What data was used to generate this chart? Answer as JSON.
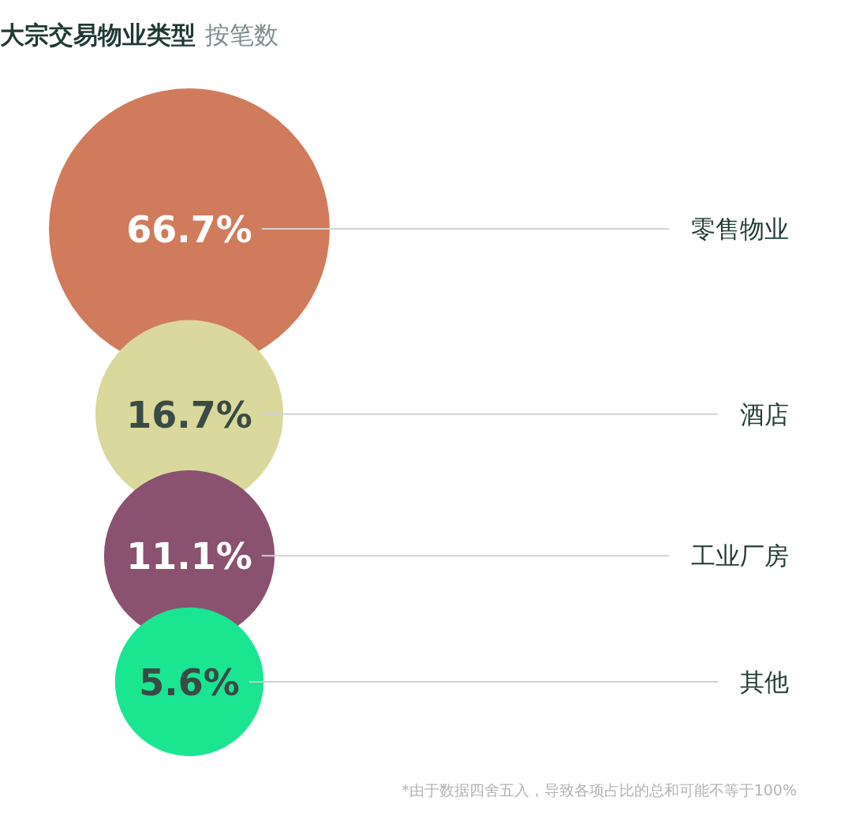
{
  "chart_data": {
    "type": "other",
    "title": "大宗交易物业类型",
    "subtitle": "按笔数",
    "categories": [
      "零售物业",
      "酒店",
      "工业厂房",
      "其他"
    ],
    "values": [
      66.7,
      16.7,
      11.1,
      5.6
    ],
    "value_labels": [
      "66.7%",
      "16.7%",
      "11.1%",
      "5.6%"
    ],
    "colors": [
      "#d07c5c",
      "#dad89c",
      "#8a5170",
      "#1ae591"
    ],
    "annotations": [
      "*由于数据四舍五入，导致各项占比的总和可能不等于100%"
    ]
  }
}
